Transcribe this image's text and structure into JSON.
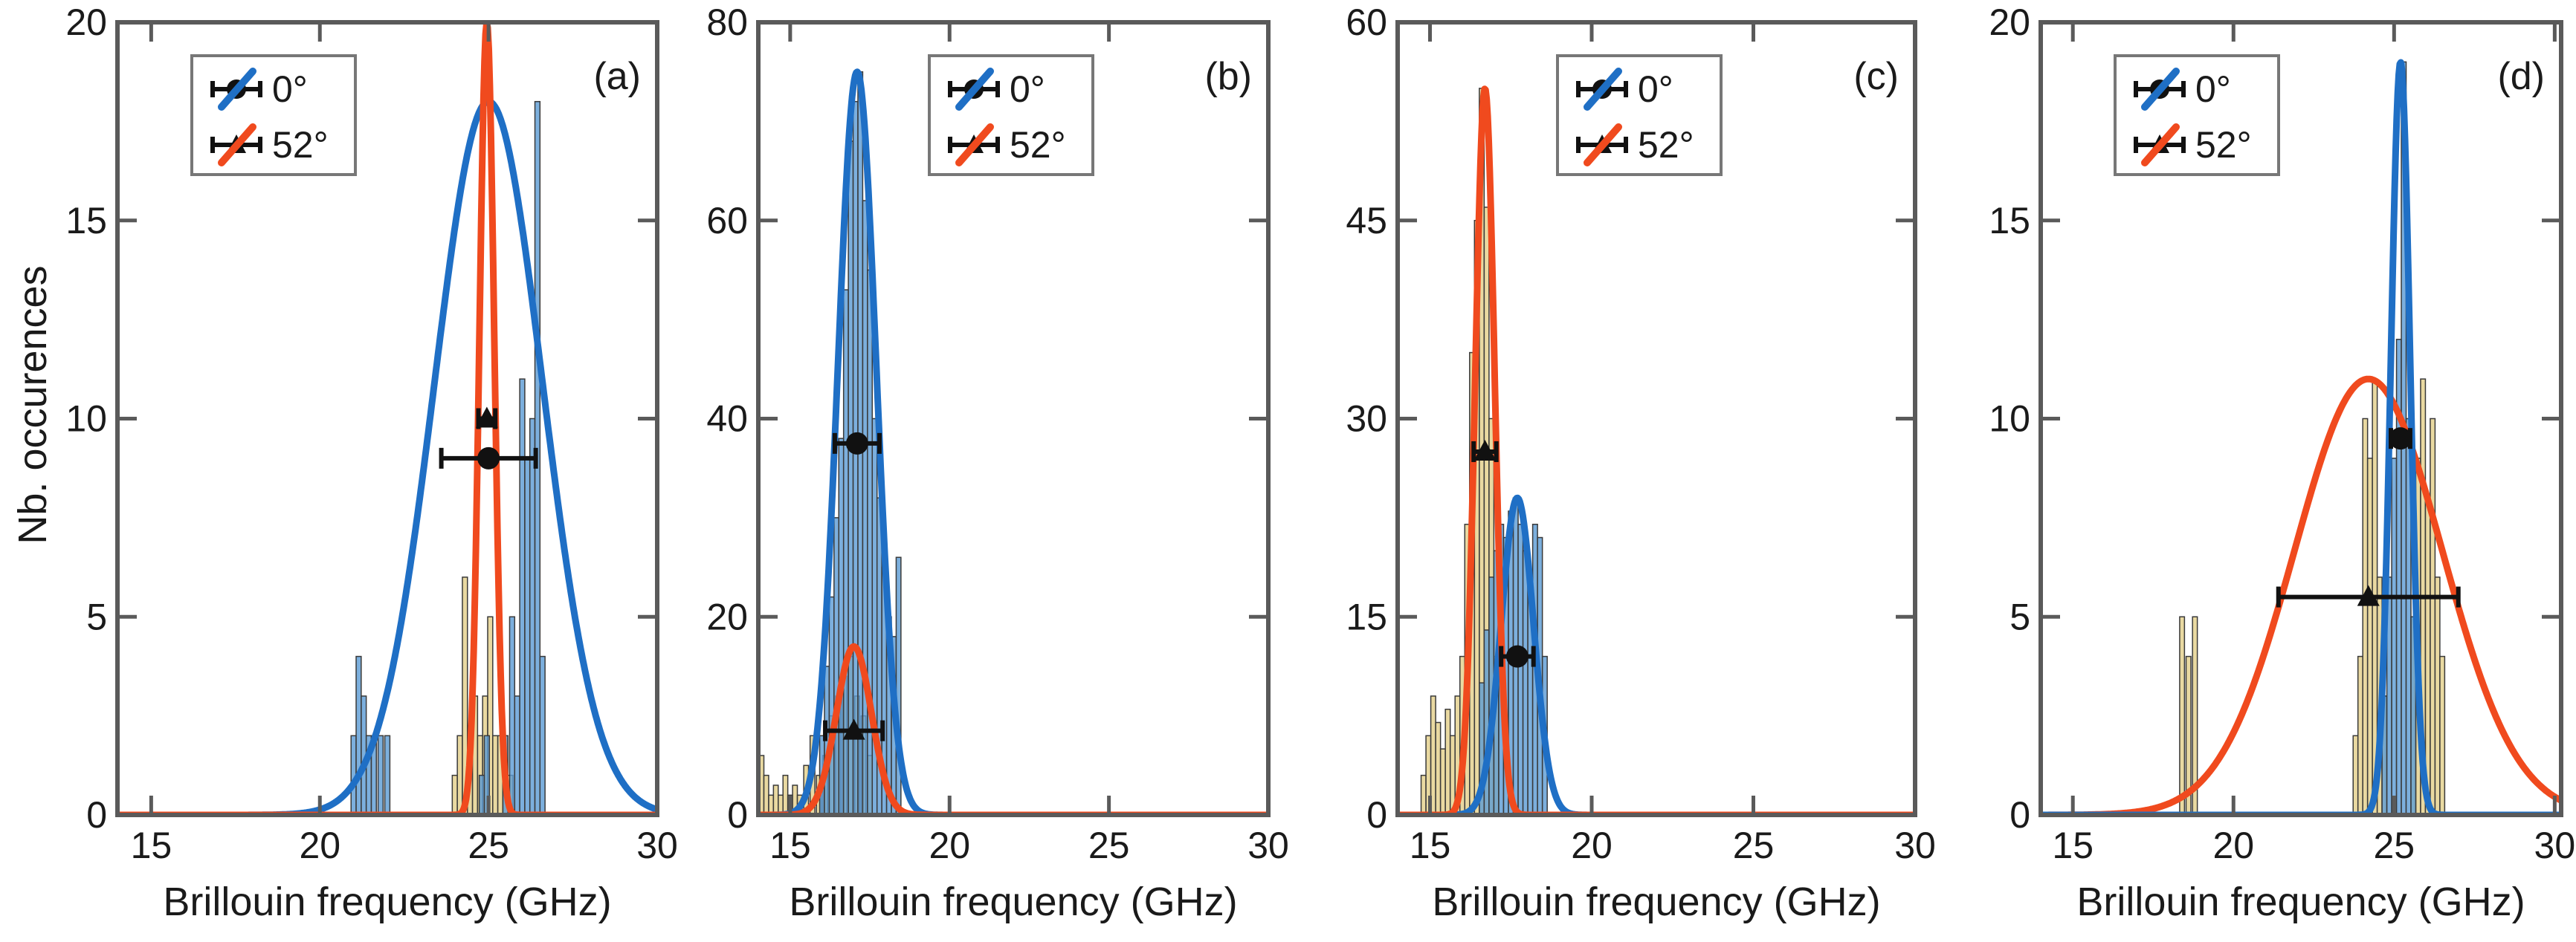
{
  "figure": {
    "ylabel": "Nb. occurences",
    "colors": {
      "blue": "#1f6fc5",
      "red": "#f04a1e",
      "bar_blue": "#5b9bd5",
      "bar_yellow": "#e3d08a",
      "bar_edge": "#3a3a3a",
      "marker": "#111111",
      "axis": "#5a5a5a"
    }
  },
  "chart_data": [
    {
      "type": "bar",
      "panel": "(a)",
      "xlabel": "Brillouin frequency (GHz)",
      "xlim": [
        14,
        30
      ],
      "ylim": [
        0,
        20
      ],
      "xticks": [
        "15",
        "20",
        "25",
        "30"
      ],
      "yticks": [
        "0",
        "5",
        "10",
        "15",
        "20"
      ],
      "yticks_values": [
        0,
        5,
        10,
        15,
        20
      ],
      "xticks_values": [
        15,
        20,
        25,
        30
      ],
      "legend": [
        "0°",
        "52°"
      ],
      "series": [
        {
          "name": "0°",
          "color": "#1f6fc5",
          "fit": {
            "mu": 25.0,
            "sigma": 1.6,
            "amp": 18
          },
          "marker": {
            "shape": "circle",
            "x": 25.0,
            "y": 9.0,
            "xerr": 1.4
          },
          "hist": {
            "x": [
              21.0,
              21.15,
              21.3,
              21.45,
              21.6,
              21.8,
              22.0,
              24.8,
              24.95,
              25.5,
              25.7,
              25.85,
              26.0,
              26.15,
              26.3,
              26.45,
              26.6
            ],
            "values": [
              2,
              4,
              3,
              2,
              2,
              2,
              2,
              1,
              2,
              2,
              5,
              3,
              11,
              9,
              10,
              18,
              4
            ]
          }
        },
        {
          "name": "52°",
          "color": "#f04a1e",
          "fit": {
            "mu": 24.95,
            "sigma": 0.22,
            "amp": 20
          },
          "marker": {
            "shape": "triangle",
            "x": 24.95,
            "y": 10.0,
            "xerr": 0.25
          },
          "hist": {
            "x": [
              24.0,
              24.15,
              24.3,
              24.45,
              24.6,
              24.75,
              24.9,
              25.05,
              25.2,
              25.35,
              25.5,
              25.65
            ],
            "values": [
              1,
              2,
              6,
              2,
              3,
              2,
              3,
              5,
              2,
              2,
              2,
              1
            ]
          }
        }
      ]
    },
    {
      "type": "bar",
      "panel": "(b)",
      "xlabel": "Brillouin frequency (GHz)",
      "xlim": [
        14,
        30
      ],
      "ylim": [
        0,
        80
      ],
      "xticks": [
        "15",
        "20",
        "25",
        "30"
      ],
      "yticks": [
        "0",
        "20",
        "40",
        "60",
        "80"
      ],
      "yticks_values": [
        0,
        20,
        40,
        60,
        80
      ],
      "xticks_values": [
        15,
        20,
        25,
        30
      ],
      "legend": [
        "0°",
        "52°"
      ],
      "series": [
        {
          "name": "0°",
          "color": "#1f6fc5",
          "fit": {
            "mu": 17.1,
            "sigma": 0.6,
            "amp": 75
          },
          "marker": {
            "shape": "circle",
            "x": 17.1,
            "y": 37.5,
            "xerr": 0.7
          },
          "hist": {
            "x": [
              16.0,
              16.15,
              16.3,
              16.45,
              16.6,
              16.75,
              16.9,
              17.05,
              17.2,
              17.35,
              17.5,
              17.65,
              17.8,
              17.95,
              18.1,
              18.25,
              18.4
            ],
            "values": [
              8,
              15,
              22,
              30,
              38,
              53,
              68,
              72,
              75,
              62,
              55,
              40,
              32,
              25,
              20,
              18,
              26
            ]
          }
        },
        {
          "name": "52°",
          "color": "#f04a1e",
          "fit": {
            "mu": 17.0,
            "sigma": 0.55,
            "amp": 17
          },
          "marker": {
            "shape": "triangle",
            "x": 17.0,
            "y": 8.5,
            "xerr": 0.9
          },
          "hist": {
            "x": [
              14.1,
              14.25,
              14.4,
              14.55,
              14.7,
              14.85,
              15.0,
              15.15,
              15.3,
              15.5,
              15.7,
              15.9,
              16.1,
              16.3,
              16.5,
              16.7,
              16.9,
              17.1,
              17.3,
              17.5
            ],
            "values": [
              6,
              4,
              2,
              3,
              2,
              4,
              2,
              3,
              2,
              5,
              8,
              4,
              6,
              10,
              12,
              14,
              16,
              12,
              10,
              6
            ]
          }
        }
      ]
    },
    {
      "type": "bar",
      "panel": "(c)",
      "xlabel": "Brillouin frequency (GHz)",
      "xlim": [
        14,
        30
      ],
      "ylim": [
        0,
        60
      ],
      "xticks": [
        "15",
        "20",
        "25",
        "30"
      ],
      "yticks": [
        "0",
        "15",
        "30",
        "45",
        "60"
      ],
      "yticks_values": [
        0,
        15,
        30,
        45,
        60
      ],
      "xticks_values": [
        15,
        20,
        25,
        30
      ],
      "legend": [
        "0°",
        "52°"
      ],
      "series": [
        {
          "name": "0°",
          "color": "#1f6fc5",
          "fit": {
            "mu": 17.7,
            "sigma": 0.5,
            "amp": 24
          },
          "marker": {
            "shape": "circle",
            "x": 17.7,
            "y": 12.0,
            "xerr": 0.5
          },
          "hist": {
            "x": [
              16.6,
              16.75,
              16.9,
              17.05,
              17.2,
              17.35,
              17.5,
              17.65,
              17.8,
              17.95,
              18.1,
              18.25,
              18.4,
              18.55
            ],
            "values": [
              10,
              14,
              18,
              20,
              22,
              21,
              23,
              24,
              22,
              20,
              18,
              22,
              21,
              12
            ]
          }
        },
        {
          "name": "52°",
          "color": "#f04a1e",
          "fit": {
            "mu": 16.7,
            "sigma": 0.3,
            "amp": 55
          },
          "marker": {
            "shape": "triangle",
            "x": 16.7,
            "y": 27.5,
            "xerr": 0.35
          },
          "hist": {
            "x": [
              14.8,
              14.95,
              15.1,
              15.25,
              15.4,
              15.55,
              15.7,
              15.85,
              16.0,
              16.15,
              16.3,
              16.45,
              16.6,
              16.75,
              16.9,
              17.05
            ],
            "values": [
              3,
              6,
              9,
              7,
              5,
              8,
              6,
              9,
              12,
              22,
              35,
              45,
              55,
              46,
              30,
              12
            ]
          }
        }
      ]
    },
    {
      "type": "bar",
      "panel": "(d)",
      "xlabel": "Brillouin frequency (GHz)",
      "xlim": [
        14,
        30.2
      ],
      "ylim": [
        0,
        20
      ],
      "xticks": [
        "15",
        "20",
        "25",
        "30"
      ],
      "yticks": [
        "0",
        "5",
        "10",
        "15",
        "20"
      ],
      "yticks_values": [
        0,
        5,
        10,
        15,
        20
      ],
      "xticks_values": [
        15,
        20,
        25,
        30
      ],
      "legend": [
        "0°",
        "52°"
      ],
      "series": [
        {
          "name": "0°",
          "color": "#1f6fc5",
          "fit": {
            "mu": 25.2,
            "sigma": 0.3,
            "amp": 19
          },
          "marker": {
            "shape": "circle",
            "x": 25.2,
            "y": 9.5,
            "xerr": 0.3
          },
          "hist": {
            "x": [
              24.7,
              24.85,
              25.0,
              25.15,
              25.3,
              25.45,
              25.6
            ],
            "values": [
              3,
              6,
              9,
              12,
              19,
              10,
              5
            ]
          }
        },
        {
          "name": "52°",
          "color": "#f04a1e",
          "fit": {
            "mu": 24.2,
            "sigma": 2.3,
            "amp": 11
          },
          "marker": {
            "shape": "triangle",
            "x": 24.2,
            "y": 5.5,
            "xerr": 2.8
          },
          "hist": {
            "x": [
              18.4,
              18.6,
              18.8,
              23.8,
              23.95,
              24.1,
              24.25,
              24.4,
              24.55,
              24.7,
              25.6,
              25.75,
              25.9,
              26.05,
              26.2,
              26.35,
              26.5
            ],
            "values": [
              5,
              4,
              5,
              2,
              4,
              10,
              9,
              11,
              6,
              3,
              5,
              9,
              11,
              8,
              10,
              6,
              4
            ]
          }
        }
      ]
    }
  ]
}
